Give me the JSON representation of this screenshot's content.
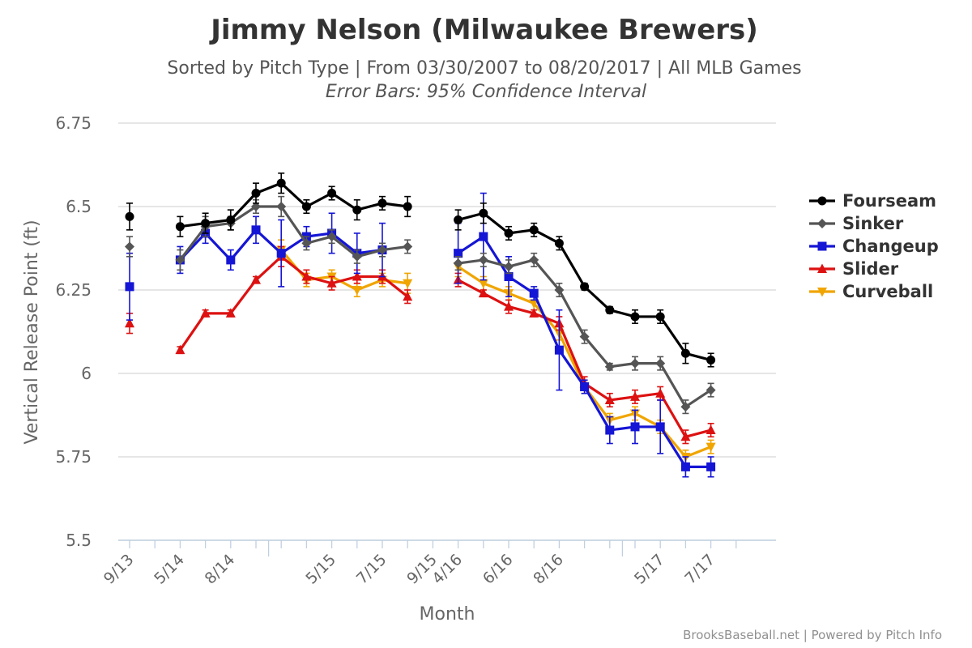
{
  "chart_data": {
    "type": "line",
    "title": "Jimmy Nelson (Milwaukee Brewers)",
    "subtitle": "Sorted by Pitch Type | From 03/30/2007 to 08/20/2017 | All MLB Games",
    "subtitle2": "Error Bars: 95% Confidence Interval",
    "xlabel": "Month",
    "ylabel": "Vertical Release Point (ft)",
    "credits": "BrooksBaseball.net | Powered by Pitch Info",
    "ylim": [
      5.5,
      6.75
    ],
    "yticks": [
      5.5,
      5.75,
      6,
      6.25,
      6.5,
      6.75
    ],
    "ytick_labels": [
      "5.5",
      "5.75",
      "6",
      "6.25",
      "6.5",
      "6.75"
    ],
    "x_categories": [
      "9/13",
      "",
      "5/14",
      "",
      "8/14",
      "",
      "",
      "",
      "5/15",
      "",
      "7/15",
      "",
      "9/15",
      "4/16",
      "",
      "6/16",
      "",
      "8/16",
      "",
      "",
      "",
      "5/17",
      "",
      "7/17",
      ""
    ],
    "axis_break_ticks_after": [
      5,
      19
    ],
    "grid": true,
    "legend_position": "right",
    "series": [
      {
        "name": "Fourseam",
        "color": "#000000",
        "marker": "circle",
        "y": [
          6.47,
          null,
          6.44,
          6.45,
          6.46,
          6.54,
          6.57,
          6.5,
          6.54,
          6.49,
          6.51,
          6.5,
          null,
          6.46,
          6.48,
          6.42,
          6.43,
          6.39,
          6.26,
          6.19,
          6.17,
          6.17,
          6.06,
          6.04,
          null
        ],
        "err": [
          0.04,
          null,
          0.03,
          0.03,
          0.03,
          0.03,
          0.03,
          0.02,
          0.02,
          0.03,
          0.02,
          0.03,
          null,
          0.03,
          0.03,
          0.02,
          0.02,
          0.02,
          0.01,
          0.01,
          0.02,
          0.02,
          0.03,
          0.02,
          null
        ]
      },
      {
        "name": "Sinker",
        "color": "#555555",
        "marker": "diamond",
        "y": [
          6.38,
          null,
          6.34,
          6.44,
          6.45,
          6.5,
          6.5,
          6.39,
          6.41,
          6.35,
          6.37,
          6.38,
          null,
          6.33,
          6.34,
          6.32,
          6.34,
          6.25,
          6.11,
          6.02,
          6.03,
          6.03,
          5.9,
          5.95,
          null
        ],
        "err": [
          0.03,
          null,
          0.03,
          0.03,
          0.02,
          0.02,
          0.03,
          0.02,
          0.02,
          0.02,
          0.02,
          0.02,
          null,
          0.02,
          0.02,
          0.02,
          0.02,
          0.02,
          0.02,
          0.01,
          0.02,
          0.02,
          0.02,
          0.02,
          null
        ]
      },
      {
        "name": "Changeup",
        "color": "#1515d5",
        "marker": "square",
        "y": [
          6.26,
          null,
          6.34,
          6.42,
          6.34,
          6.43,
          6.36,
          6.41,
          6.42,
          6.36,
          6.37,
          null,
          null,
          6.36,
          6.41,
          6.29,
          6.24,
          6.07,
          5.96,
          5.83,
          5.84,
          5.84,
          5.72,
          5.72,
          null
        ],
        "err": [
          0.1,
          null,
          0.04,
          0.03,
          0.03,
          0.04,
          0.1,
          0.03,
          0.06,
          0.06,
          0.08,
          null,
          null,
          0.09,
          0.13,
          0.06,
          0.02,
          0.12,
          0.02,
          0.04,
          0.05,
          0.08,
          0.03,
          0.03,
          null
        ]
      },
      {
        "name": "Slider",
        "color": "#dd1111",
        "marker": "triangle",
        "y": [
          6.15,
          null,
          6.07,
          6.18,
          6.18,
          6.28,
          6.35,
          6.29,
          6.27,
          6.29,
          6.29,
          6.23,
          null,
          6.28,
          6.24,
          6.2,
          6.18,
          6.15,
          5.97,
          5.92,
          5.93,
          5.94,
          5.81,
          5.83,
          null
        ],
        "err": [
          0.03,
          null,
          0.01,
          0.01,
          0.01,
          0.01,
          0.03,
          0.02,
          0.02,
          0.02,
          0.02,
          0.02,
          null,
          0.02,
          0.01,
          0.02,
          0.01,
          0.02,
          0.02,
          0.02,
          0.02,
          0.02,
          0.02,
          0.02,
          null
        ]
      },
      {
        "name": "Curveball",
        "color": "#f0a500",
        "marker": "triangle-down",
        "y": [
          null,
          null,
          null,
          null,
          null,
          null,
          6.37,
          6.28,
          6.29,
          6.25,
          6.28,
          6.27,
          null,
          6.32,
          6.27,
          6.24,
          6.21,
          6.12,
          5.96,
          5.86,
          5.88,
          5.84,
          5.75,
          5.78,
          null
        ],
        "err": [
          null,
          null,
          null,
          null,
          null,
          null,
          0.03,
          0.02,
          0.02,
          0.02,
          0.02,
          0.03,
          null,
          0.03,
          0.02,
          0.02,
          0.02,
          0.02,
          0.02,
          0.02,
          0.02,
          0.02,
          0.02,
          0.02,
          null
        ]
      }
    ]
  }
}
